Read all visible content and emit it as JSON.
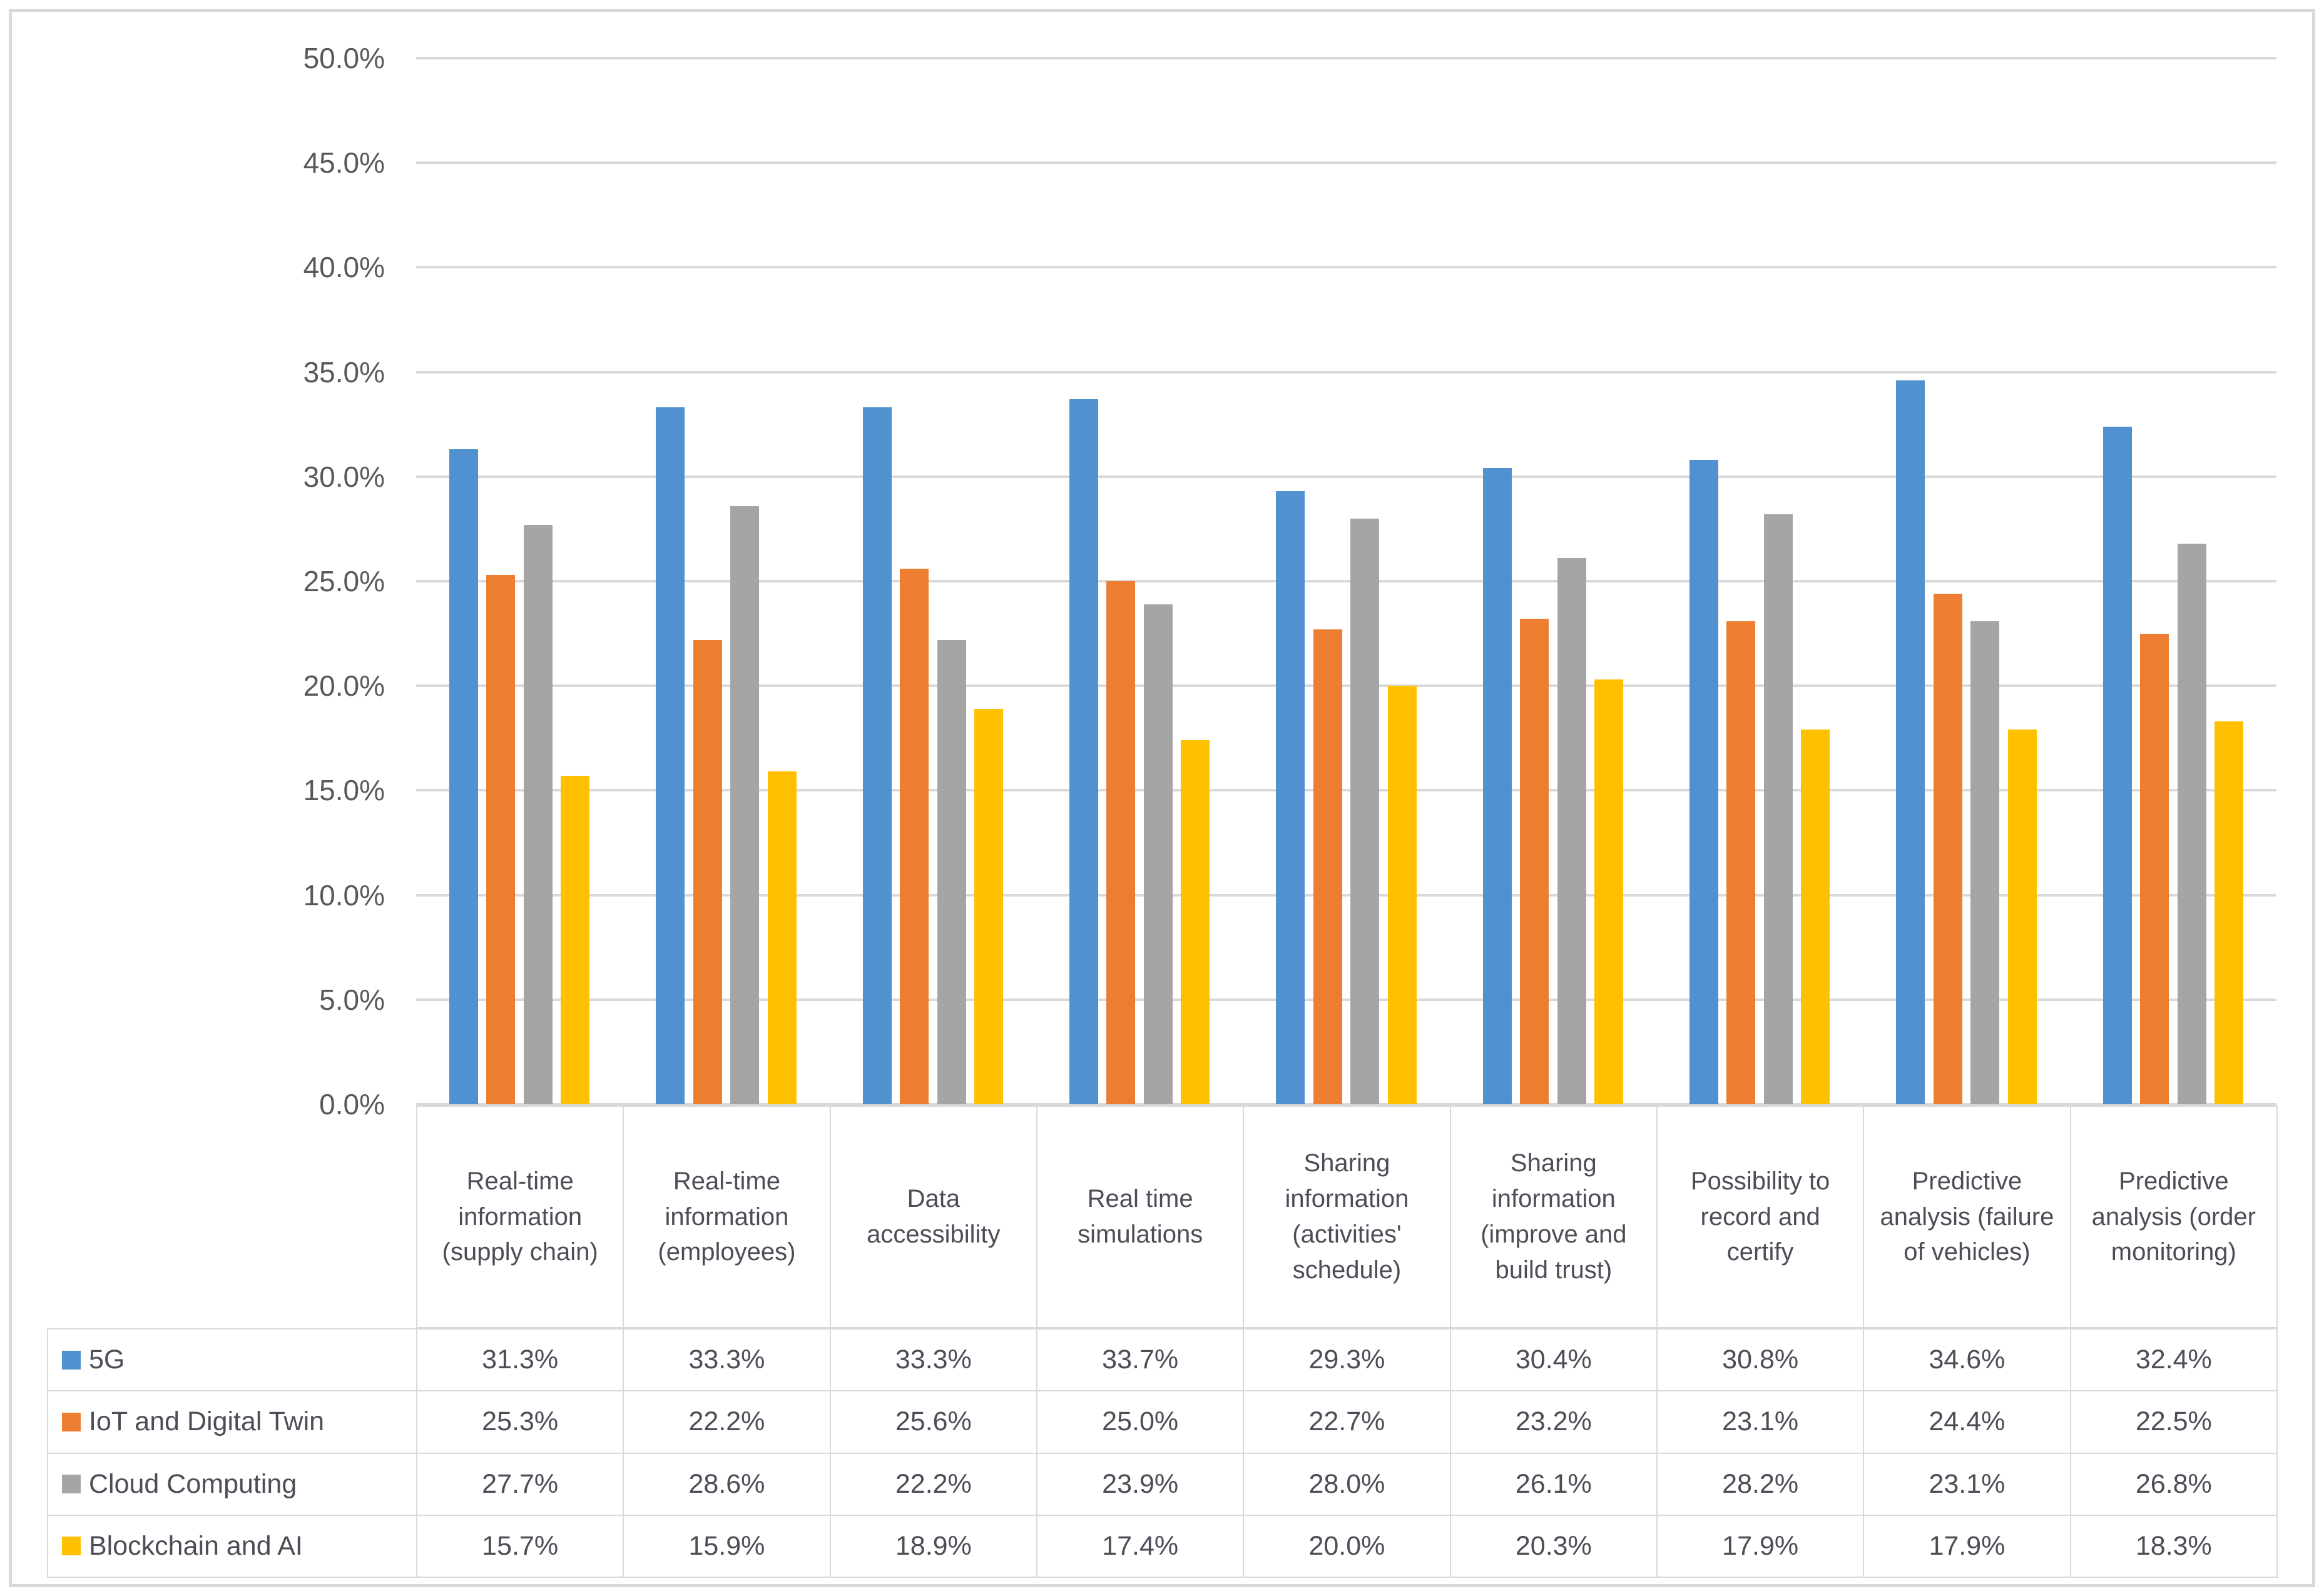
{
  "chart_data": {
    "type": "bar",
    "title": "",
    "xlabel": "",
    "ylabel": "",
    "ylim": [
      0,
      50
    ],
    "grid": true,
    "legend_position": "data-table-left",
    "y_axis": {
      "min": 0,
      "max": 50,
      "step": 5,
      "tick_labels": [
        "0.0%",
        "5.0%",
        "10.0%",
        "15.0%",
        "20.0%",
        "25.0%",
        "30.0%",
        "35.0%",
        "40.0%",
        "45.0%",
        "50.0%"
      ]
    },
    "categories": [
      "Real-time information (supply chain)",
      "Real-time information (employees)",
      "Data accessibility",
      "Real time simulations",
      "Sharing information (activities' schedule)",
      "Sharing information (improve and build trust)",
      "Possibility to record and certify",
      "Predictive analysis (failure of vehicles)",
      "Predictive analysis (order monitoring)"
    ],
    "series": [
      {
        "name": "5G",
        "color": "#5291CF",
        "values": [
          31.3,
          33.3,
          33.3,
          33.7,
          29.3,
          30.4,
          30.8,
          34.6,
          32.4
        ],
        "labels": [
          "31.3%",
          "33.3%",
          "33.3%",
          "33.7%",
          "29.3%",
          "30.4%",
          "30.8%",
          "34.6%",
          "32.4%"
        ]
      },
      {
        "name": "IoT and Digital Twin",
        "color": "#ED7D31",
        "values": [
          25.3,
          22.2,
          25.6,
          25.0,
          22.7,
          23.2,
          23.1,
          24.4,
          22.5
        ],
        "labels": [
          "25.3%",
          "22.2%",
          "25.6%",
          "25.0%",
          "22.7%",
          "23.2%",
          "23.1%",
          "24.4%",
          "22.5%"
        ]
      },
      {
        "name": "Cloud Computing",
        "color": "#A5A5A5",
        "values": [
          27.7,
          28.6,
          22.2,
          23.9,
          28.0,
          26.1,
          28.2,
          23.1,
          26.8
        ],
        "labels": [
          "27.7%",
          "28.6%",
          "22.2%",
          "23.9%",
          "28.0%",
          "26.1%",
          "28.2%",
          "23.1%",
          "26.8%"
        ]
      },
      {
        "name": "Blockchain and AI",
        "color": "#FFC000",
        "values": [
          15.7,
          15.9,
          18.9,
          17.4,
          20.0,
          20.3,
          17.9,
          17.9,
          18.3
        ],
        "labels": [
          "15.7%",
          "15.9%",
          "18.9%",
          "17.4%",
          "20.0%",
          "20.3%",
          "17.9%",
          "17.9%",
          "18.3%"
        ]
      }
    ],
    "palette": {
      "gridline": "#D9D9D9",
      "table_border": "#D9D9D9",
      "axis_text": "#595959",
      "table_text": "#4B4E57",
      "background": "#FFFFFF"
    }
  }
}
